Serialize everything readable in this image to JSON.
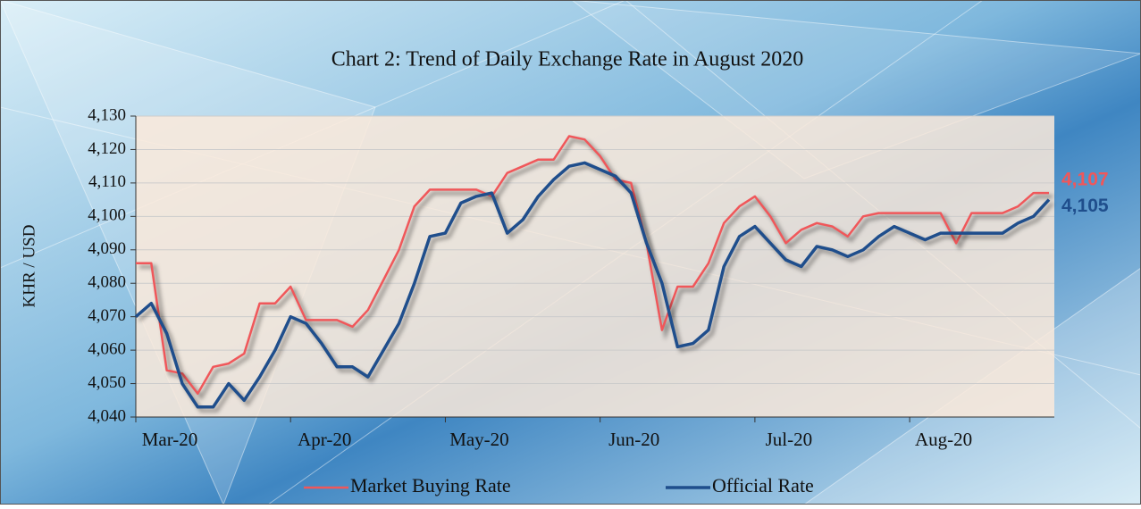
{
  "chart_data": {
    "type": "line",
    "title": "Chart 2: Trend of Daily Exchange Rate in August 2020",
    "y_label": "KHR / USD",
    "categories": [
      "Mar-20",
      null,
      null,
      null,
      null,
      null,
      null,
      null,
      null,
      null,
      "Apr-20",
      null,
      null,
      null,
      null,
      null,
      null,
      null,
      null,
      null,
      "May-20",
      null,
      null,
      null,
      null,
      null,
      null,
      null,
      null,
      null,
      "Jun-20",
      null,
      null,
      null,
      null,
      null,
      null,
      null,
      null,
      null,
      "Jul-20",
      null,
      null,
      null,
      null,
      null,
      null,
      null,
      null,
      null,
      "Aug-20",
      null,
      null,
      null,
      null,
      null,
      null,
      null,
      null,
      null
    ],
    "series": [
      {
        "name": "Market Buying Rate",
        "color": "#f0575a",
        "end_label": "4,107",
        "values": [
          4086,
          4086,
          4054,
          4053,
          4047,
          4055,
          4056,
          4059,
          4074,
          4074,
          4079,
          4069,
          4069,
          4069,
          4067,
          4072,
          4081,
          4090,
          4103,
          4108,
          4108,
          4108,
          4108,
          4106,
          4113,
          4115,
          4117,
          4117,
          4124,
          4123,
          4118,
          4111,
          4110,
          4092,
          4066,
          4079,
          4079,
          4086,
          4098,
          4103,
          4106,
          4100,
          4092,
          4096,
          4098,
          4097,
          4094,
          4100,
          4101,
          4101,
          4101,
          4101,
          4101,
          4092,
          4101,
          4101,
          4101,
          4103,
          4107,
          4107
        ]
      },
      {
        "name": "Official Rate",
        "color": "#1f4e8c",
        "end_label": "4,105",
        "values": [
          4070,
          4074,
          4065,
          4050,
          4043,
          4043,
          4050,
          4045,
          4052,
          4060,
          4070,
          4068,
          4062,
          4055,
          4055,
          4052,
          4060,
          4068,
          4080,
          4094,
          4095,
          4104,
          4106,
          4107,
          4095,
          4099,
          4106,
          4111,
          4115,
          4116,
          4114,
          4112,
          4107,
          4092,
          4080,
          4061,
          4062,
          4066,
          4085,
          4094,
          4097,
          4092,
          4087,
          4085,
          4091,
          4090,
          4088,
          4090,
          4094,
          4097,
          4095,
          4093,
          4095,
          4095,
          4095,
          4095,
          4095,
          4098,
          4100,
          4105
        ]
      }
    ],
    "ylim": [
      4040,
      4130
    ],
    "yticks": [
      {
        "value": 4040,
        "label": "4,040"
      },
      {
        "value": 4050,
        "label": "4,050"
      },
      {
        "value": 4060,
        "label": "4,060"
      },
      {
        "value": 4070,
        "label": "4,070"
      },
      {
        "value": 4080,
        "label": "4,080"
      },
      {
        "value": 4090,
        "label": "4,090"
      },
      {
        "value": 4100,
        "label": "4,100"
      },
      {
        "value": 4110,
        "label": "4,110"
      },
      {
        "value": 4120,
        "label": "4,120"
      },
      {
        "value": 4130,
        "label": "4,130"
      }
    ],
    "grid": true,
    "legend": "bottom"
  }
}
